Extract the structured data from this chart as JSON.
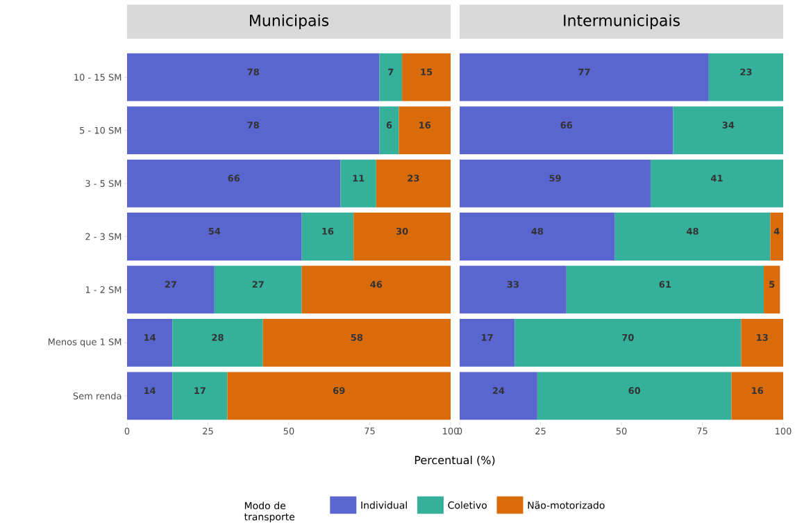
{
  "chart_data": [
    {
      "type": "bar",
      "orientation": "horizontal",
      "stacked": true,
      "title": "Municipais",
      "xlabel": "Percentual (%)",
      "legend_title": "Modo de transporte",
      "legend": "bottom",
      "data_labels": true,
      "categories": [
        "10 - 15 SM",
        "5 - 10 SM",
        "3 - 5 SM",
        "2 - 3 SM",
        "1 - 2 SM",
        "Menos que 1 SM",
        "Sem renda"
      ],
      "xlim": [
        0,
        100
      ],
      "xticks": [
        0,
        25,
        50,
        75,
        100
      ],
      "series": [
        {
          "name": "Individual",
          "color": "#5a66d0",
          "values": [
            78,
            78,
            66,
            54,
            27,
            14,
            14
          ]
        },
        {
          "name": "Coletivo",
          "color": "#35b09b",
          "values": [
            7,
            6,
            11,
            16,
            27,
            28,
            17
          ]
        },
        {
          "name": "Não-motorizado",
          "color": "#d96b0b",
          "values": [
            15,
            16,
            23,
            30,
            46,
            58,
            69
          ]
        }
      ]
    },
    {
      "type": "bar",
      "orientation": "horizontal",
      "stacked": true,
      "title": "Intermunicipais",
      "data_labels": true,
      "tick_labels": "x",
      "categories": [
        null,
        null,
        null,
        null,
        null,
        null,
        null
      ],
      "xlim": [
        0,
        100
      ],
      "xticks": [
        0,
        25,
        50,
        75,
        100
      ],
      "series": [
        {
          "color": "#5a66d0",
          "values": [
            77,
            66,
            59,
            48,
            33,
            17,
            24
          ]
        },
        {
          "color": "#35b09b",
          "values": [
            23,
            34,
            41,
            48,
            61,
            70,
            60
          ]
        },
        {
          "color": "#d96b0b",
          "values": [
            null,
            null,
            null,
            4,
            5,
            13,
            16
          ]
        }
      ]
    }
  ]
}
